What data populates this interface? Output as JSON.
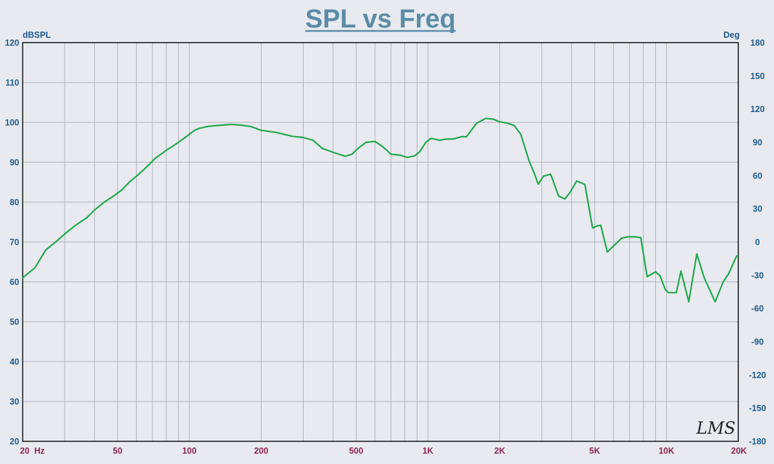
{
  "colors": {
    "background": "#e8eaf0",
    "title": "#5a8ca8",
    "left_axis": "#1f5a8e",
    "right_axis": "#1f5a8e",
    "x_axis": "#8e2454",
    "grid": "#aeb3bd",
    "curve": "#1fa84a",
    "watermark": "#222222"
  },
  "chart_data": {
    "type": "line",
    "title": "SPL vs Freq",
    "xscale": "log",
    "xlim": [
      20,
      20000
    ],
    "ylim": [
      20,
      120
    ],
    "y2lim": [
      -180,
      180
    ],
    "ylabel": "dBSPL",
    "y2label": "Deg",
    "grid": true,
    "xticks": [
      {
        "value": 20,
        "label": "20  Hz"
      },
      {
        "value": 50,
        "label": "50"
      },
      {
        "value": 100,
        "label": "100"
      },
      {
        "value": 200,
        "label": "200"
      },
      {
        "value": 500,
        "label": "500"
      },
      {
        "value": 1000,
        "label": "1K"
      },
      {
        "value": 2000,
        "label": "2K"
      },
      {
        "value": 5000,
        "label": "5K"
      },
      {
        "value": 10000,
        "label": "10K"
      },
      {
        "value": 20000,
        "label": "20K"
      }
    ],
    "yticks": [
      20,
      30,
      40,
      50,
      60,
      70,
      80,
      90,
      100,
      110,
      120
    ],
    "y2ticks": [
      -180,
      -150,
      -120,
      -90,
      -60,
      -30,
      0,
      30,
      60,
      90,
      120,
      150,
      180
    ],
    "watermark": "LMS",
    "series": [
      {
        "x": [
          20,
          22.5,
          25,
          27.5,
          30,
          33,
          37,
          40,
          44,
          48,
          52,
          56,
          60,
          64,
          68,
          72,
          76,
          80,
          85,
          90,
          95,
          100,
          105,
          110,
          120,
          130,
          150,
          165,
          180,
          200,
          230,
          270,
          300,
          330,
          360,
          400,
          450,
          480,
          510,
          550,
          600,
          650,
          700,
          760,
          820,
          880,
          920,
          980,
          1030,
          1120,
          1180,
          1230,
          1290,
          1380,
          1450,
          1600,
          1750,
          1880,
          1980,
          2150,
          2300,
          2450,
          2650,
          2800,
          2900,
          3050,
          3270,
          3530,
          3750,
          3950,
          4200,
          4550,
          4900,
          5100,
          5300,
          5650,
          6000,
          6500,
          6900,
          7400,
          7800,
          8300,
          9000,
          9400,
          9900,
          10200,
          11000,
          11500,
          12400,
          13400,
          14400,
          16000,
          17300,
          18200,
          19700
        ],
        "y": [
          61.0,
          63.5,
          68.0,
          70.0,
          72.0,
          74.0,
          76.0,
          78.0,
          80.0,
          81.5,
          83.0,
          85.0,
          86.5,
          88.0,
          89.5,
          91.0,
          92.0,
          93.0,
          94.0,
          95.0,
          96.0,
          97.0,
          98.0,
          98.5,
          99.0,
          99.2,
          99.5,
          99.3,
          99.0,
          98.0,
          97.5,
          96.5,
          96.2,
          95.5,
          93.5,
          92.5,
          91.5,
          92.0,
          93.5,
          95.0,
          95.2,
          93.8,
          92.0,
          91.8,
          91.2,
          91.6,
          92.5,
          95.0,
          96.0,
          95.5,
          95.8,
          95.8,
          95.9,
          96.4,
          96.4,
          99.8,
          101.0,
          100.8,
          100.2,
          99.8,
          99.2,
          97.0,
          90.5,
          87.0,
          84.5,
          86.5,
          87.0,
          81.5,
          80.8,
          82.5,
          85.3,
          84.4,
          73.5,
          74.0,
          74.2,
          67.5,
          69.0,
          71.0,
          71.3,
          71.3,
          71.1,
          61.3,
          62.5,
          61.5,
          58.0,
          57.3,
          57.3,
          62.7,
          55.0,
          67.0,
          61.0,
          55.0,
          60.0,
          62.0,
          66.5
        ]
      }
    ]
  }
}
